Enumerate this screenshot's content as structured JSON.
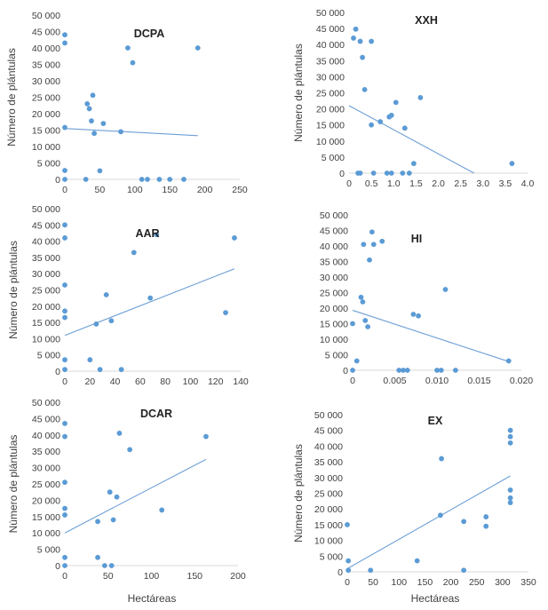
{
  "colors": {
    "point": "#5b9bd5",
    "trend": "#6d9fd6",
    "axis": "#d9d9d9",
    "text": "#404040"
  },
  "shared_ylabel": "Número de plántulas",
  "shared_xlabel": "Hectáreas",
  "chart_data": [
    {
      "type": "scatter",
      "title": "DCPA",
      "xlabel": "",
      "ylabel": "Número de plántulas",
      "xlim": [
        0,
        250
      ],
      "ylim": [
        0,
        50000
      ],
      "xticks": [
        "0",
        "50",
        "100",
        "150",
        "200",
        "250"
      ],
      "yticks": [
        "0",
        "5 000",
        "10 000",
        "15 000",
        "20 000",
        "25 000",
        "30 000",
        "35 000",
        "40 000",
        "45 000",
        "50 000"
      ],
      "points": [
        [
          0,
          44000
        ],
        [
          0,
          41500
        ],
        [
          0,
          15800
        ],
        [
          0,
          2700
        ],
        [
          0,
          0
        ],
        [
          30,
          0
        ],
        [
          32,
          23000
        ],
        [
          35,
          21500
        ],
        [
          38,
          17800
        ],
        [
          40,
          25600
        ],
        [
          42,
          14000
        ],
        [
          50,
          2600
        ],
        [
          55,
          17000
        ],
        [
          80,
          14500
        ],
        [
          90,
          40000
        ],
        [
          97,
          35500
        ],
        [
          110,
          0
        ],
        [
          118,
          0
        ],
        [
          135,
          0
        ],
        [
          150,
          0
        ],
        [
          170,
          0
        ],
        [
          190,
          40000
        ]
      ],
      "trend": [
        [
          0,
          15500
        ],
        [
          190,
          13300
        ]
      ],
      "grid": false
    },
    {
      "type": "scatter",
      "title": "XXH",
      "xlabel": "",
      "ylabel": "Número de plántulas",
      "xlim": [
        0,
        4.0
      ],
      "ylim": [
        0,
        50000
      ],
      "xticks": [
        "0",
        "0.5",
        "1.0",
        "1.5",
        "2.0",
        "2.5",
        "3.0",
        "3.5",
        "4.0"
      ],
      "yticks": [
        "0",
        "5 000",
        "10 000",
        "15 000",
        "20 000",
        "25 000",
        "30 000",
        "35 000",
        "40 000",
        "45 000",
        "50 000"
      ],
      "points": [
        [
          0.1,
          42000
        ],
        [
          0.15,
          44800
        ],
        [
          0.2,
          0
        ],
        [
          0.25,
          41000
        ],
        [
          0.25,
          0
        ],
        [
          0.3,
          36000
        ],
        [
          0.35,
          26000
        ],
        [
          0.5,
          15000
        ],
        [
          0.5,
          41000
        ],
        [
          0.55,
          0
        ],
        [
          0.7,
          16000
        ],
        [
          0.85,
          0
        ],
        [
          0.9,
          17500
        ],
        [
          0.95,
          0
        ],
        [
          0.95,
          18000
        ],
        [
          1.05,
          22000
        ],
        [
          1.2,
          0
        ],
        [
          1.25,
          14000
        ],
        [
          1.35,
          0
        ],
        [
          1.45,
          3000
        ],
        [
          1.6,
          23500
        ],
        [
          3.65,
          3000
        ]
      ],
      "trend": [
        [
          0,
          21000
        ],
        [
          2.8,
          0
        ]
      ],
      "grid": false
    },
    {
      "type": "scatter",
      "title": "AAR",
      "xlabel": "",
      "ylabel": "Número de plántulas",
      "xlim": [
        0,
        140
      ],
      "ylim": [
        0,
        50000
      ],
      "xticks": [
        "0",
        "20",
        "40",
        "60",
        "80",
        "100",
        "120",
        "140"
      ],
      "yticks": [
        "0",
        "5 000",
        "10 000",
        "15 000",
        "20 000",
        "25 000",
        "30 000",
        "35 000",
        "40 000",
        "45 000",
        "50 000"
      ],
      "points": [
        [
          0,
          45000
        ],
        [
          0,
          41000
        ],
        [
          0,
          26500
        ],
        [
          0,
          18500
        ],
        [
          0,
          16500
        ],
        [
          0,
          3500
        ],
        [
          0,
          500
        ],
        [
          20,
          3500
        ],
        [
          25,
          14500
        ],
        [
          28,
          500
        ],
        [
          33,
          23500
        ],
        [
          37,
          15500
        ],
        [
          45,
          500
        ],
        [
          55,
          36500
        ],
        [
          68,
          22500
        ],
        [
          73,
          42000
        ],
        [
          128,
          18000
        ],
        [
          135,
          41000
        ]
      ],
      "trend": [
        [
          0,
          11000
        ],
        [
          135,
          31500
        ]
      ],
      "grid": false
    },
    {
      "type": "scatter",
      "title": "HI",
      "xlabel": "",
      "ylabel": "",
      "xlim": [
        0,
        0.02
      ],
      "ylim": [
        0,
        50000
      ],
      "xticks": [
        "0",
        "0.005",
        "0.010",
        "0.015",
        "0.020"
      ],
      "yticks": [
        "0",
        "5 000",
        "10 000",
        "15 000",
        "20 000",
        "25 000",
        "30 000",
        "35 000",
        "40 000",
        "45 000",
        "50 000"
      ],
      "points": [
        [
          0,
          15000
        ],
        [
          0,
          0
        ],
        [
          0.0005,
          3000
        ],
        [
          0.001,
          23500
        ],
        [
          0.0012,
          22000
        ],
        [
          0.0013,
          40500
        ],
        [
          0.0015,
          16000
        ],
        [
          0.0018,
          14000
        ],
        [
          0.002,
          35500
        ],
        [
          0.0023,
          44500
        ],
        [
          0.0025,
          40500
        ],
        [
          0.0035,
          41500
        ],
        [
          0.0055,
          0
        ],
        [
          0.006,
          0
        ],
        [
          0.0065,
          0
        ],
        [
          0.0072,
          18000
        ],
        [
          0.0078,
          17500
        ],
        [
          0.01,
          0
        ],
        [
          0.0105,
          0
        ],
        [
          0.011,
          26000
        ],
        [
          0.0122,
          0
        ],
        [
          0.0185,
          3000
        ]
      ],
      "trend": [
        [
          0,
          19300
        ],
        [
          0.0185,
          2800
        ]
      ],
      "grid": false
    },
    {
      "type": "scatter",
      "title": "DCAR",
      "xlabel": "Hectáreas",
      "ylabel": "Número de plántulas",
      "xlim": [
        0,
        200
      ],
      "ylim": [
        0,
        50000
      ],
      "xticks": [
        "0",
        "50",
        "100",
        "150",
        "200"
      ],
      "yticks": [
        "0",
        "5 000",
        "10 000",
        "15 000",
        "20 000",
        "25 000",
        "30 000",
        "35 000",
        "40 000",
        "45 000",
        "50 000"
      ],
      "points": [
        [
          0,
          43500
        ],
        [
          0,
          39500
        ],
        [
          0,
          25500
        ],
        [
          0,
          17500
        ],
        [
          0,
          15500
        ],
        [
          0,
          2500
        ],
        [
          0,
          0
        ],
        [
          38,
          13500
        ],
        [
          38,
          2500
        ],
        [
          46,
          0
        ],
        [
          52,
          22500
        ],
        [
          54,
          0
        ],
        [
          56,
          14000
        ],
        [
          60,
          21000
        ],
        [
          63,
          40500
        ],
        [
          75,
          35500
        ],
        [
          112,
          17000
        ],
        [
          163,
          39500
        ]
      ],
      "trend": [
        [
          0,
          10000
        ],
        [
          163,
          32500
        ]
      ],
      "grid": false
    },
    {
      "type": "scatter",
      "title": "EX",
      "xlabel": "Hectáreas",
      "ylabel": "Número de plántulas",
      "xlim": [
        0,
        350
      ],
      "ylim": [
        0,
        50000
      ],
      "xticks": [
        "0",
        "50",
        "100",
        "150",
        "200",
        "250",
        "300",
        "350"
      ],
      "yticks": [
        "0",
        "5 000",
        "10 000",
        "15 000",
        "20 000",
        "25 000",
        "30 000",
        "35 000",
        "40 000",
        "45 000",
        "50 000"
      ],
      "points": [
        [
          0,
          15000
        ],
        [
          2,
          3500
        ],
        [
          2,
          500
        ],
        [
          45,
          500
        ],
        [
          135,
          3500
        ],
        [
          180,
          18000
        ],
        [
          182,
          36000
        ],
        [
          225,
          16000
        ],
        [
          225,
          500
        ],
        [
          268,
          14500
        ],
        [
          268,
          17500
        ],
        [
          315,
          45000
        ],
        [
          315,
          43000
        ],
        [
          315,
          41000
        ],
        [
          315,
          26000
        ],
        [
          315,
          23500
        ],
        [
          315,
          22000
        ]
      ],
      "trend": [
        [
          0,
          1000
        ],
        [
          315,
          30500
        ]
      ],
      "grid": false
    }
  ]
}
